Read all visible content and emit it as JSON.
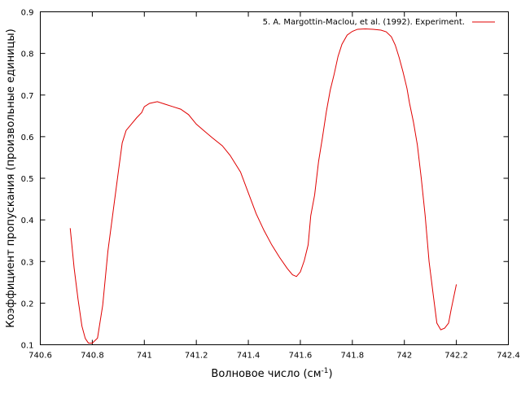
{
  "chart_data": {
    "type": "line",
    "title": "",
    "xlabel": "Волновое число (см",
    "xlabel_sup": "-1",
    "xlabel_tail": ")",
    "ylabel": "Коэффициент пропускания (произвольные единицы)",
    "xlim": [
      740.6,
      742.4
    ],
    "ylim": [
      0.1,
      0.9
    ],
    "grid": false,
    "legend_position": "top-right",
    "x_ticks": [
      "740.6",
      "740.8",
      "741",
      "741.2",
      "741.4",
      "741.6",
      "741.8",
      "742",
      "742.2",
      "742.4"
    ],
    "y_ticks": [
      "0.1",
      "0.2",
      "0.3",
      "0.4",
      "0.5",
      "0.6",
      "0.7",
      "0.8",
      "0.9"
    ],
    "colors": {
      "series": "#e00000",
      "axis": "#000000"
    },
    "series": [
      {
        "name": "5. A. Margottin-Maclou, et al. (1992). Experiment.",
        "points": [
          [
            740.715,
            0.38
          ],
          [
            740.73,
            0.285
          ],
          [
            740.745,
            0.21
          ],
          [
            740.76,
            0.145
          ],
          [
            740.773,
            0.115
          ],
          [
            740.785,
            0.104
          ],
          [
            740.8,
            0.104
          ],
          [
            740.82,
            0.116
          ],
          [
            740.84,
            0.195
          ],
          [
            740.86,
            0.325
          ],
          [
            740.88,
            0.42
          ],
          [
            740.9,
            0.515
          ],
          [
            740.915,
            0.585
          ],
          [
            740.93,
            0.615
          ],
          [
            740.95,
            0.63
          ],
          [
            740.97,
            0.645
          ],
          [
            740.99,
            0.658
          ],
          [
            741.0,
            0.672
          ],
          [
            741.02,
            0.68
          ],
          [
            741.05,
            0.684
          ],
          [
            741.08,
            0.678
          ],
          [
            741.11,
            0.672
          ],
          [
            741.14,
            0.666
          ],
          [
            741.17,
            0.653
          ],
          [
            741.2,
            0.63
          ],
          [
            741.23,
            0.614
          ],
          [
            741.26,
            0.598
          ],
          [
            741.3,
            0.578
          ],
          [
            741.33,
            0.555
          ],
          [
            741.37,
            0.515
          ],
          [
            741.4,
            0.465
          ],
          [
            741.43,
            0.415
          ],
          [
            741.46,
            0.375
          ],
          [
            741.49,
            0.34
          ],
          [
            741.52,
            0.31
          ],
          [
            741.55,
            0.283
          ],
          [
            741.57,
            0.268
          ],
          [
            741.585,
            0.264
          ],
          [
            741.6,
            0.275
          ],
          [
            741.615,
            0.302
          ],
          [
            741.63,
            0.34
          ],
          [
            741.64,
            0.41
          ],
          [
            741.655,
            0.46
          ],
          [
            741.67,
            0.54
          ],
          [
            741.685,
            0.598
          ],
          [
            741.7,
            0.66
          ],
          [
            741.715,
            0.712
          ],
          [
            741.73,
            0.75
          ],
          [
            741.745,
            0.793
          ],
          [
            741.76,
            0.822
          ],
          [
            741.78,
            0.844
          ],
          [
            741.8,
            0.853
          ],
          [
            741.82,
            0.858
          ],
          [
            741.85,
            0.859
          ],
          [
            741.88,
            0.858
          ],
          [
            741.91,
            0.856
          ],
          [
            741.93,
            0.852
          ],
          [
            741.95,
            0.84
          ],
          [
            741.965,
            0.82
          ],
          [
            741.98,
            0.79
          ],
          [
            741.995,
            0.755
          ],
          [
            742.01,
            0.716
          ],
          [
            742.02,
            0.68
          ],
          [
            742.035,
            0.635
          ],
          [
            742.05,
            0.58
          ],
          [
            742.065,
            0.5
          ],
          [
            742.08,
            0.41
          ],
          [
            742.095,
            0.3
          ],
          [
            742.11,
            0.225
          ],
          [
            742.125,
            0.152
          ],
          [
            742.14,
            0.136
          ],
          [
            742.155,
            0.14
          ],
          [
            742.17,
            0.152
          ],
          [
            742.18,
            0.185
          ],
          [
            742.19,
            0.215
          ],
          [
            742.2,
            0.245
          ]
        ]
      }
    ]
  }
}
